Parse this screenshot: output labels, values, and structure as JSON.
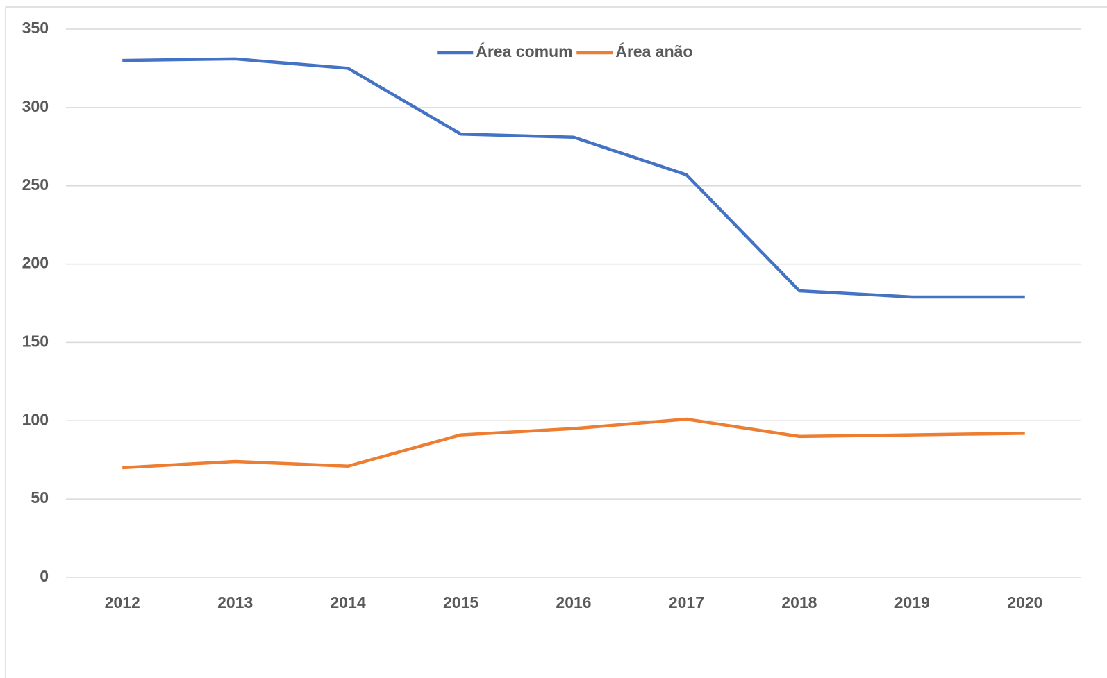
{
  "chart_data": {
    "type": "line",
    "categories": [
      "2012",
      "2013",
      "2014",
      "2015",
      "2016",
      "2017",
      "2018",
      "2019",
      "2020"
    ],
    "series": [
      {
        "name": "Área comum",
        "color": "#4472c4",
        "values": [
          330,
          331,
          325,
          283,
          281,
          257,
          183,
          179,
          179
        ]
      },
      {
        "name": "Área anão",
        "color": "#ed7d31",
        "values": [
          70,
          74,
          71,
          91,
          95,
          101,
          90,
          91,
          92
        ]
      }
    ],
    "ylim": [
      0,
      350
    ],
    "yticks": [
      0,
      50,
      100,
      150,
      200,
      250,
      300,
      350
    ],
    "grid": true,
    "legend": "top"
  }
}
